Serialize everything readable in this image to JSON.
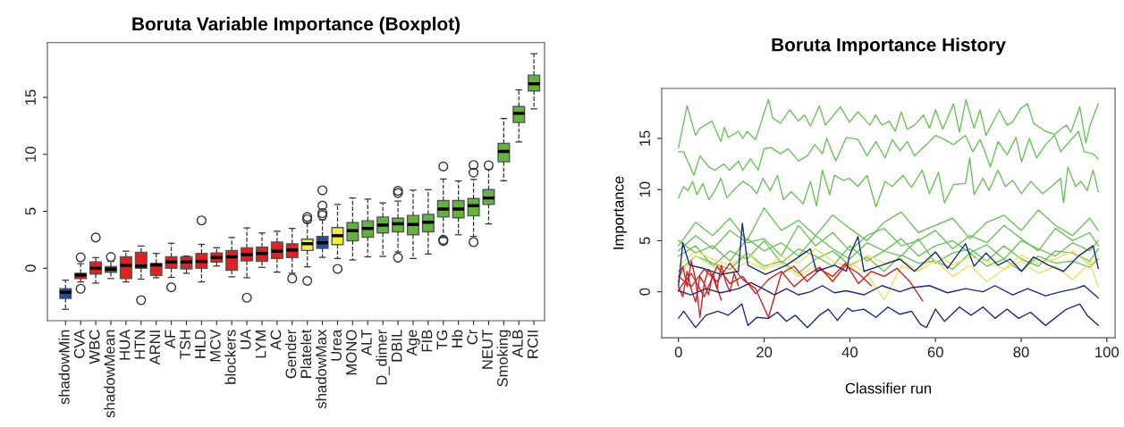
{
  "chart_data": [
    {
      "type": "box",
      "title": "Boruta Variable Importance (Boxplot)",
      "categories": [
        "shadowMin",
        "CVA",
        "WBC",
        "shadowMean",
        "HUA",
        "HTN",
        "ARNI",
        "AF",
        "TSH",
        "HLD",
        "MCV",
        "blockers",
        "UA",
        "LYM",
        "AC",
        "Gender",
        "Platelet",
        "shadowMax",
        "Urea",
        "MONO",
        "ALT",
        "D_dimer",
        "DBIL",
        "Age",
        "FIB",
        "TG",
        "Hb",
        "Cr",
        "NEUT",
        "Smoking",
        "ALB",
        "RCII"
      ],
      "colors": [
        "#1f4fa0",
        "#e3201f",
        "#e3201f",
        "#1f4fa0",
        "#e3201f",
        "#e3201f",
        "#e3201f",
        "#e3201f",
        "#e3201f",
        "#e3201f",
        "#e3201f",
        "#e3201f",
        "#e3201f",
        "#e3201f",
        "#e3201f",
        "#e3201f",
        "#f2ee3c",
        "#1f4fa0",
        "#f2ee3c",
        "#62b53a",
        "#62b53a",
        "#62b53a",
        "#62b53a",
        "#62b53a",
        "#62b53a",
        "#62b53a",
        "#62b53a",
        "#62b53a",
        "#62b53a",
        "#62b53a",
        "#62b53a",
        "#62b53a"
      ],
      "boxes": [
        {
          "low": -3.6,
          "q1": -2.65,
          "median": -2.1,
          "q3": -1.8,
          "high": -1.04
        },
        {
          "low": -1.2,
          "q1": -0.9,
          "median": -0.6,
          "q3": -0.44,
          "high": 0.4,
          "outliers": [
            0.96,
            -1.8
          ]
        },
        {
          "low": -1.3,
          "q1": -0.5,
          "median": 0.0,
          "q3": 0.55,
          "high": 0.94,
          "outliers": [
            2.7
          ]
        },
        {
          "low": -0.9,
          "q1": -0.35,
          "median": -0.08,
          "q3": 0.15,
          "high": 0.6,
          "outliers": [
            1.0
          ]
        },
        {
          "low": -1.2,
          "q1": -0.9,
          "median": 0.26,
          "q3": 1.0,
          "high": 1.5
        },
        {
          "low": -0.95,
          "q1": 0.0,
          "median": 0.2,
          "q3": 1.4,
          "high": 1.95,
          "outliers": [
            -2.8
          ]
        },
        {
          "low": -0.83,
          "q1": -0.62,
          "median": 0.29,
          "q3": 0.42,
          "high": 1.3
        },
        {
          "low": -0.8,
          "q1": 0.0,
          "median": 0.55,
          "q3": 1.0,
          "high": 2.2,
          "outliers": [
            -1.67
          ]
        },
        {
          "low": -0.44,
          "q1": -0.05,
          "median": 0.55,
          "q3": 1.0,
          "high": 1.07
        },
        {
          "low": -1.2,
          "q1": 0.0,
          "median": 0.6,
          "q3": 1.3,
          "high": 2.1,
          "outliers": [
            4.2
          ]
        },
        {
          "low": 0.2,
          "q1": 0.55,
          "median": 0.94,
          "q3": 1.35,
          "high": 1.8
        },
        {
          "low": -0.75,
          "q1": -0.18,
          "median": 1.0,
          "q3": 1.55,
          "high": 2.7
        },
        {
          "low": -0.83,
          "q1": 0.65,
          "median": 1.2,
          "q3": 1.8,
          "high": 3.55,
          "outliers": [
            -2.58
          ]
        },
        {
          "low": 0.08,
          "q1": 0.6,
          "median": 1.3,
          "q3": 1.85,
          "high": 3.1
        },
        {
          "low": -0.34,
          "q1": 0.86,
          "median": 1.5,
          "q3": 2.3,
          "high": 3.25
        },
        {
          "low": -0.44,
          "q1": 0.94,
          "median": 1.6,
          "q3": 2.15,
          "high": 3.5,
          "outliers": [
            -0.9
          ]
        },
        {
          "low": 0.13,
          "q1": 1.56,
          "median": 2.16,
          "q3": 2.55,
          "high": 4.0,
          "outliers": [
            4.3,
            4.5,
            -1.1
          ]
        },
        {
          "low": 0.96,
          "q1": 1.75,
          "median": 2.24,
          "q3": 2.8,
          "high": 4.25,
          "outliers": [
            4.65,
            4.85,
            5.5,
            6.85
          ]
        },
        {
          "low": 0.86,
          "q1": 2.08,
          "median": 2.86,
          "q3": 3.57,
          "high": 5.6,
          "outliers": [
            -0.05
          ]
        },
        {
          "low": 0.73,
          "q1": 2.42,
          "median": 3.3,
          "q3": 4.0,
          "high": 6.17
        },
        {
          "low": 1.0,
          "q1": 2.73,
          "median": 3.5,
          "q3": 4.17,
          "high": 6.07
        },
        {
          "low": 1.04,
          "q1": 3.1,
          "median": 3.78,
          "q3": 4.5,
          "high": 5.73
        },
        {
          "low": 1.43,
          "q1": 3.2,
          "median": 3.9,
          "q3": 4.4,
          "high": 5.9,
          "outliers": [
            6.6,
            6.8,
            0.94
          ]
        },
        {
          "low": 0.86,
          "q1": 2.94,
          "median": 3.85,
          "q3": 4.64,
          "high": 6.85
        },
        {
          "low": 1.25,
          "q1": 3.2,
          "median": 4.04,
          "q3": 4.74,
          "high": 6.9
        },
        {
          "low": 2.7,
          "q1": 4.5,
          "median": 5.2,
          "q3": 5.94,
          "high": 7.84,
          "outliers": [
            8.93,
            2.4,
            2.5
          ]
        },
        {
          "low": 2.94,
          "q1": 4.43,
          "median": 5.2,
          "q3": 5.94,
          "high": 7.66
        },
        {
          "low": 2.8,
          "q1": 4.6,
          "median": 5.5,
          "q3": 6.12,
          "high": 7.8,
          "outliers": [
            9.06,
            8.4,
            2.3
          ]
        },
        {
          "low": 3.9,
          "q1": 5.6,
          "median": 6.17,
          "q3": 6.9,
          "high": 8.67,
          "outliers": [
            9.04
          ]
        },
        {
          "low": 7.68,
          "q1": 9.35,
          "median": 10.26,
          "q3": 10.96,
          "high": 13.15
        },
        {
          "low": 11.1,
          "q1": 12.8,
          "median": 13.6,
          "q3": 14.2,
          "high": 15.65
        },
        {
          "low": 14.0,
          "q1": 15.57,
          "median": 16.2,
          "q3": 16.95,
          "high": 18.83
        }
      ],
      "ylim": [
        -4.6,
        19.8
      ],
      "yticks": [
        0,
        5,
        10,
        15
      ],
      "grid": false
    },
    {
      "type": "line",
      "title": "Boruta Importance History",
      "xlabel": "Classifier run",
      "ylabel": "Importance",
      "xlim": [
        -3.92,
        101.92
      ],
      "ylim": [
        -4.5,
        19.9
      ],
      "xticks": [
        0,
        20,
        40,
        60,
        80,
        100
      ],
      "yticks": [
        0,
        5,
        10,
        15
      ],
      "grid": false,
      "marker": "none",
      "line_style": "solid",
      "series": [
        {
          "color": "#6ac45a",
          "x": [
            0,
            2,
            4,
            5,
            7.8,
            9.9,
            10.7,
            11.6,
            14,
            15,
            16,
            18,
            21,
            22,
            23.8,
            26,
            28,
            29.4,
            30.8,
            32.9,
            34.3,
            37.8,
            39.9,
            41.9,
            44.7,
            46,
            47.5,
            49.2,
            50.6,
            52,
            53.4,
            55.1,
            57.2,
            58.6,
            60,
            61.7,
            64.2,
            65.6,
            67.1,
            69,
            70.4,
            71.8,
            74.9,
            76.7,
            78,
            79.8,
            81.5,
            82.9,
            85.7,
            87.8,
            89.2,
            90.6,
            91.6,
            93.7,
            95.1,
            96.1,
            98
          ],
          "values": [
            14.1,
            18.2,
            15.3,
            16.0,
            16.7,
            14.7,
            16.1,
            15.1,
            15.7,
            15.0,
            15.7,
            14.9,
            18.8,
            17.0,
            16.5,
            17.8,
            16.7,
            17.3,
            16.2,
            18.2,
            16.3,
            18.1,
            16.6,
            17.6,
            16.3,
            17.3,
            16.3,
            16.7,
            15.7,
            17.6,
            15.9,
            16.3,
            17.3,
            16.0,
            17.8,
            15.9,
            18.4,
            15.6,
            18.8,
            16.0,
            17.8,
            15.3,
            17.8,
            16.3,
            16.6,
            17.9,
            18.4,
            16.5,
            15.7,
            15.4,
            15.9,
            16.3,
            15.6,
            18.1,
            14.6,
            16.3,
            18.4
          ]
        },
        {
          "color": "#6ac45a",
          "x": [
            0,
            1.2,
            3.6,
            5,
            7.1,
            8.5,
            10.6,
            11.9,
            14,
            15,
            16.8,
            18.6,
            20,
            21.7,
            23.8,
            25.6,
            28,
            30.1,
            31.8,
            33.6,
            34.6,
            36.7,
            39.2,
            41.9,
            44,
            46.1,
            48.2,
            49.9,
            51.7,
            53.4,
            55.1,
            57.9,
            60,
            62.1,
            64.2,
            67,
            68.7,
            70.4,
            71.8,
            72.8,
            74.6,
            76.7,
            78.8,
            80.1,
            81.9,
            83.6,
            85.7,
            87.8,
            89.2,
            91.3,
            93.4,
            94.7,
            96.8,
            98
          ],
          "values": [
            13.7,
            13.7,
            11.4,
            13.3,
            12.2,
            11.9,
            12.5,
            11.9,
            12.8,
            11.9,
            13.0,
            11.9,
            14.0,
            14.1,
            13.5,
            14.0,
            12.8,
            13.3,
            14.4,
            13.5,
            15.0,
            12.8,
            15.1,
            14.9,
            13.3,
            14.7,
            13.1,
            14.9,
            13.8,
            14.7,
            13.3,
            14.4,
            15.3,
            14.9,
            14.4,
            15.3,
            13.7,
            14.9,
            13.4,
            12.2,
            14.7,
            13.4,
            15.1,
            12.7,
            15.0,
            13.1,
            14.4,
            15.3,
            13.7,
            14.7,
            15.7,
            13.7,
            13.5,
            13.0
          ]
        },
        {
          "color": "#6ac45a",
          "x": [
            0,
            1.2,
            2.2,
            3.3,
            4.3,
            5.7,
            7.1,
            8.5,
            9.9,
            11.3,
            13.4,
            15.1,
            16.9,
            18.3,
            19.7,
            21.4,
            23.1,
            24.5,
            26.3,
            27.7,
            29.1,
            30.8,
            32.2,
            33.6,
            35.3,
            36.4,
            38.5,
            39.9,
            41.9,
            44,
            46.1,
            48.2,
            49.9,
            52.4,
            54.4,
            56.9,
            58.6,
            60.7,
            62.1,
            64.2,
            67,
            68,
            69,
            71.1,
            72.5,
            74.6,
            76.3,
            78,
            80.1,
            82.2,
            85,
            87.1,
            89.2,
            89.9,
            90.9,
            92.7,
            94,
            95.4,
            96.8,
            98
          ],
          "values": [
            9.2,
            10.3,
            9.9,
            10.8,
            9.5,
            10.6,
            9.0,
            9.9,
            11.1,
            9.2,
            10.2,
            10.8,
            10.3,
            9.6,
            11.1,
            9.9,
            11.4,
            9.0,
            9.8,
            9.2,
            8.6,
            10.8,
            8.4,
            11.9,
            9.5,
            11.4,
            10.9,
            11.1,
            10.3,
            11.4,
            8.3,
            10.8,
            10.3,
            11.4,
            10.2,
            11.9,
            9.6,
            11.7,
            8.7,
            10.5,
            10.6,
            13.1,
            9.5,
            11.1,
            9.9,
            11.9,
            10.3,
            10.9,
            9.6,
            10.8,
            9.6,
            10.3,
            11.1,
            8.7,
            12.2,
            10.3,
            10.8,
            9.9,
            11.9,
            9.8
          ]
        },
        {
          "color": "#6ac45a",
          "x": [
            0,
            4,
            8,
            12,
            16,
            20,
            24,
            28,
            32,
            36,
            40,
            44,
            48,
            52,
            56,
            60,
            64,
            68,
            72,
            76,
            80,
            84,
            88,
            92,
            96,
            98
          ],
          "values": [
            4.5,
            6.8,
            5.5,
            7.2,
            5.0,
            8.2,
            6.0,
            7.0,
            5.5,
            7.5,
            6.2,
            5.0,
            6.8,
            7.8,
            5.8,
            6.5,
            7.2,
            5.2,
            6.8,
            7.5,
            6.0,
            8.0,
            6.5,
            5.5,
            7.2,
            6.0
          ]
        },
        {
          "color": "#6ac45a",
          "x": [
            0,
            4,
            8,
            12,
            16,
            20,
            24,
            28,
            32,
            36,
            40,
            44,
            48,
            52,
            56,
            60,
            64,
            68,
            72,
            76,
            80,
            84,
            88,
            92,
            96,
            98
          ],
          "values": [
            4.0,
            5.5,
            4.2,
            6.0,
            4.8,
            5.2,
            3.5,
            6.5,
            4.5,
            5.8,
            4.0,
            5.5,
            6.2,
            4.5,
            5.0,
            6.0,
            4.2,
            5.5,
            4.8,
            6.5,
            5.2,
            4.0,
            6.2,
            5.0,
            5.8,
            4.5
          ]
        },
        {
          "color": "#6ac45a",
          "x": [
            0,
            4,
            8,
            12,
            16,
            20,
            24,
            28,
            32,
            36,
            40,
            44,
            48,
            52,
            56,
            60,
            64,
            68,
            72,
            76,
            80,
            84,
            88,
            92,
            96,
            98
          ],
          "values": [
            5.0,
            3.8,
            4.5,
            3.0,
            5.2,
            4.0,
            4.8,
            3.5,
            5.5,
            4.2,
            3.2,
            4.8,
            4.0,
            5.2,
            3.5,
            4.5,
            5.0,
            3.8,
            4.6,
            3.2,
            5.0,
            4.2,
            3.5,
            4.8,
            4.0,
            5.0
          ]
        },
        {
          "color": "#6ac45a",
          "x": [
            0,
            4,
            8,
            12,
            16,
            20,
            24,
            28,
            32,
            36,
            40,
            44,
            48,
            52,
            56,
            60,
            64,
            68,
            72,
            76,
            80,
            84,
            88,
            92,
            96,
            98
          ],
          "values": [
            3.5,
            4.5,
            2.5,
            4.0,
            3.2,
            5.0,
            2.8,
            4.2,
            3.5,
            2.5,
            4.5,
            3.0,
            4.0,
            3.5,
            5.2,
            2.8,
            3.8,
            4.2,
            3.0,
            4.5,
            3.2,
            2.5,
            4.0,
            3.8,
            3.0,
            4.2
          ]
        },
        {
          "color": "#6ac45a",
          "x": [
            0,
            4,
            8,
            12,
            16,
            20,
            24,
            28,
            32,
            36,
            40,
            44,
            48,
            52,
            56,
            60,
            64,
            68,
            72,
            76,
            80,
            84,
            88,
            92,
            96,
            98
          ],
          "values": [
            2.0,
            3.5,
            2.8,
            2.2,
            3.8,
            2.5,
            3.0,
            1.8,
            3.2,
            4.0,
            2.6,
            3.4,
            2.0,
            3.6,
            2.8,
            3.0,
            2.2,
            3.8,
            2.5,
            3.2,
            2.0,
            3.5,
            2.8,
            3.0,
            2.4,
            3.2
          ]
        },
        {
          "color": "#f0e060",
          "x": [
            0,
            4,
            8,
            12,
            16,
            20,
            24,
            28,
            32,
            36,
            40,
            44,
            48,
            52,
            56,
            60,
            64,
            68,
            72,
            76,
            80,
            84,
            88,
            92,
            96,
            98
          ],
          "values": [
            1.5,
            3.5,
            2.5,
            1.8,
            3.0,
            2.2,
            2.8,
            1.5,
            2.6,
            1.2,
            2.8,
            1.8,
            -0.8,
            2.5,
            2.0,
            3.0,
            1.5,
            2.6,
            1.0,
            2.2,
            3.0,
            1.8,
            2.5,
            1.2,
            2.8,
            0.5
          ]
        },
        {
          "color": "#f0e060",
          "x": [
            0,
            4,
            8,
            12,
            16,
            20,
            24,
            28,
            32,
            36,
            40,
            44,
            48,
            52,
            56,
            60,
            64,
            68,
            72,
            76,
            80,
            84,
            88,
            92,
            96,
            98
          ],
          "values": [
            2.5,
            4.0,
            3.2,
            2.6,
            3.8,
            2.2,
            3.5,
            2.8,
            4.2,
            3.0,
            2.4,
            3.6,
            2.8,
            3.2,
            2.0,
            3.8,
            2.6,
            3.4,
            3.0,
            2.2,
            3.6,
            2.8,
            3.2,
            4.0,
            2.6,
            3.5
          ]
        },
        {
          "color": "#d42020",
          "x": [
            0,
            1,
            2,
            3,
            4,
            5,
            6,
            7,
            8,
            9,
            10
          ],
          "values": [
            0.5,
            -0.5,
            2.0,
            0.2,
            -1.0,
            1.5,
            0.8,
            -0.3,
            1.8,
            0.4,
            -0.8
          ]
        },
        {
          "color": "#d42020",
          "x": [
            0,
            1,
            2,
            3,
            4,
            5,
            6,
            7,
            8,
            9,
            10,
            11,
            12,
            13,
            14
          ],
          "values": [
            1.0,
            2.5,
            0.5,
            3.0,
            1.2,
            -2.5,
            0.8,
            2.2,
            1.5,
            0.3,
            2.6,
            1.0,
            0.0,
            1.8,
            0.6
          ]
        },
        {
          "color": "#d42020",
          "x": [
            0,
            3,
            6,
            9,
            12,
            15,
            18,
            21,
            24,
            27,
            30,
            33,
            36,
            39,
            42,
            45,
            48,
            51,
            54,
            57
          ],
          "values": [
            1.5,
            0.5,
            2.2,
            1.0,
            2.8,
            1.2,
            0.3,
            -2.5,
            1.8,
            2.5,
            1.0,
            2.2,
            1.5,
            2.8,
            0.8,
            2.0,
            1.5,
            2.3,
            1.0,
            -0.9
          ]
        },
        {
          "color": "#d42020",
          "x": [
            0,
            3,
            6,
            9,
            12,
            15,
            18,
            21,
            24,
            27,
            30,
            33,
            36,
            39,
            42,
            45
          ],
          "values": [
            0.2,
            1.8,
            -0.5,
            2.5,
            0.8,
            1.5,
            -0.2,
            1.2,
            2.0,
            0.5,
            1.6,
            2.4,
            1.0,
            2.6,
            1.8,
            0.6
          ]
        },
        {
          "color": "#1a2a80",
          "x": [
            0,
            1,
            2.6,
            5.7,
            9.9,
            14,
            14.9,
            16.2,
            20.3,
            25.2,
            30.8,
            32.2,
            36.4,
            39.2,
            39.9,
            41.9,
            43.3,
            47.5,
            51.7,
            55.1,
            60,
            62.8,
            67,
            69,
            71.8,
            74.6,
            77.4,
            80.1,
            82.9,
            86.4,
            89.9,
            93.4,
            96.8,
            98
          ],
          "values": [
            0.6,
            4.8,
            2.6,
            2.3,
            1.7,
            2.0,
            6.7,
            2.6,
            1.7,
            2.6,
            4.2,
            2.0,
            2.6,
            2.0,
            3.5,
            5.4,
            2.0,
            2.6,
            3.2,
            2.0,
            3.9,
            2.3,
            4.7,
            2.5,
            3.8,
            2.6,
            3.2,
            2.0,
            3.4,
            2.6,
            2.0,
            3.5,
            4.5,
            2.3
          ]
        },
        {
          "color": "#1a2a80",
          "x": [
            0,
            2.9,
            6.4,
            9.9,
            14,
            16.9,
            19.7,
            22.4,
            25.2,
            28,
            30.8,
            33.6,
            36.4,
            39.2,
            43.3,
            47.5,
            51.7,
            54.4,
            58.6,
            62.8,
            67,
            71.1,
            73.9,
            78,
            81.5,
            85.7,
            89.2,
            92.7,
            94.7,
            98
          ],
          "values": [
            0.1,
            -0.3,
            0.3,
            -0.1,
            0.3,
            0.9,
            0.3,
            -0.3,
            0.3,
            -0.3,
            0.0,
            0.6,
            -0.1,
            0.1,
            -0.3,
            0.6,
            0.0,
            0.4,
            0.6,
            -0.1,
            0.3,
            0.0,
            0.6,
            -0.3,
            0.3,
            -0.4,
            0.0,
            0.3,
            0.6,
            -0.6
          ]
        },
        {
          "color": "#1a2a80",
          "x": [
            0,
            1.2,
            4,
            6.4,
            9.2,
            11.6,
            14.8,
            16.2,
            18.3,
            21,
            23.1,
            25.2,
            27.3,
            30.1,
            32.9,
            35,
            37.1,
            39.5,
            40.6,
            43.3,
            46.1,
            48.9,
            51.7,
            54.4,
            56.5,
            57.9,
            60,
            62.1,
            65.6,
            68.3,
            71.1,
            73.9,
            76.7,
            79.4,
            82.2,
            85.7,
            87.8,
            90.6,
            93.7,
            95.4,
            98
          ],
          "values": [
            -2.6,
            -1.9,
            -3.5,
            -2.3,
            -1.9,
            -2.3,
            -1.2,
            -3.3,
            -2.5,
            -2.6,
            -2.0,
            -2.9,
            -2.3,
            -3.5,
            -2.3,
            -1.7,
            -2.8,
            -1.6,
            -1.9,
            -1.7,
            -2.5,
            -1.5,
            -2.2,
            -1.9,
            -3.2,
            -3.5,
            -1.7,
            -2.9,
            -1.5,
            -2.3,
            -1.5,
            -2.6,
            -1.7,
            -2.6,
            -2.0,
            -3.3,
            -2.6,
            -1.7,
            -1.2,
            -2.3,
            -3.3
          ]
        }
      ]
    }
  ]
}
